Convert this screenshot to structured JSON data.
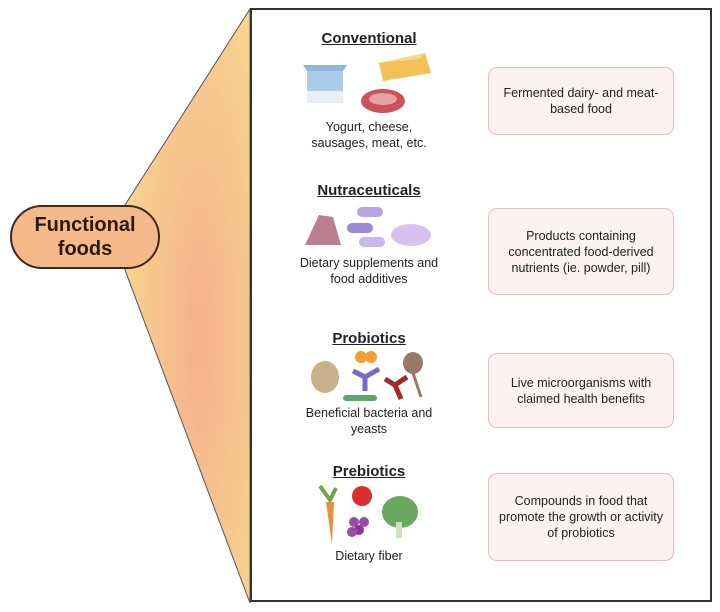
{
  "main_label": "Functional foods",
  "categories": [
    {
      "title": "Conventional",
      "examples": "Yogurt, cheese, sausages, meat, etc.",
      "description": "Fermented dairy- and meat-based food",
      "icon": "yogurt-cheese-meat-icon"
    },
    {
      "title": "Nutraceuticals",
      "examples": "Dietary supplements and food additives",
      "description": "Products containing concentrated food-derived nutrients (ie. powder, pill)",
      "icon": "powder-pills-icon"
    },
    {
      "title": "Probiotics",
      "examples": "Beneficial bacteria and yeasts",
      "description": "Live microorganisms with claimed health benefits",
      "icon": "microorganisms-icon"
    },
    {
      "title": "Prebiotics",
      "examples": "Dietary fiber",
      "description": "Compounds in food that promote the growth or activity of probiotics",
      "icon": "vegetables-fruit-icon"
    }
  ],
  "colors": {
    "pill": "#f5b98a",
    "funnel_top": "#f8d890",
    "funnel_bottom": "#f5b48c",
    "box_fill": "#fdf1f1",
    "box_border": "#e8bcbc"
  }
}
